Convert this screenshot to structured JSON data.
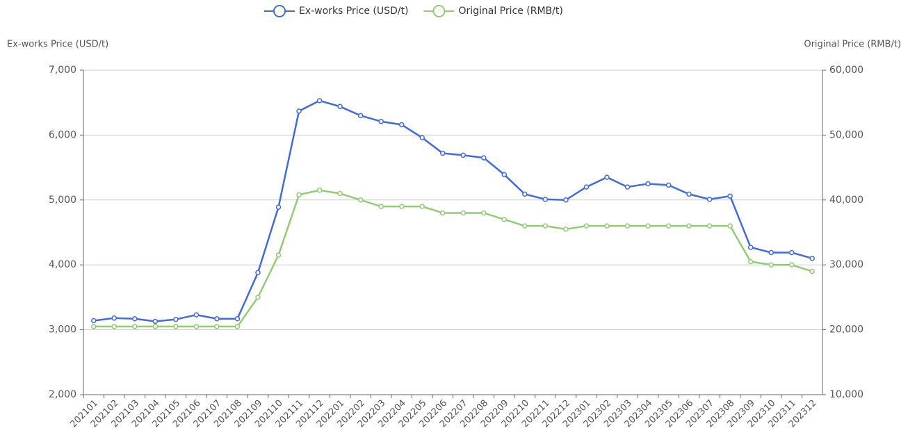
{
  "chart_data": {
    "type": "line",
    "categories": [
      "202101",
      "202102",
      "202103",
      "202104",
      "202105",
      "202106",
      "202107",
      "202108",
      "202109",
      "202110",
      "202111",
      "202112",
      "202201",
      "202202",
      "202203",
      "202204",
      "202205",
      "202206",
      "202207",
      "202208",
      "202209",
      "202210",
      "202211",
      "202212",
      "202301",
      "202302",
      "202303",
      "202304",
      "202305",
      "202306",
      "202307",
      "202308",
      "202309",
      "202310",
      "202311",
      "202312"
    ],
    "series": [
      {
        "name": "Ex-works Price (USD/t)",
        "color": "#4169e1",
        "axis": "y",
        "values": [
          3140,
          3180,
          3170,
          3130,
          3160,
          3230,
          3170,
          3170,
          3880,
          4890,
          6370,
          6530,
          6440,
          6300,
          6210,
          6160,
          5960,
          5720,
          5690,
          5650,
          5390,
          5090,
          5010,
          5000,
          5200,
          5350,
          5200,
          5250,
          5230,
          5090,
          5010,
          5060,
          4270,
          4190,
          4190,
          4100
        ]
      },
      {
        "name": "Original Price (RMB/t)",
        "color": "#91cc75",
        "axis": "y2",
        "values": [
          20500,
          20500,
          20500,
          20500,
          20500,
          20500,
          20500,
          20500,
          25000,
          31500,
          40800,
          41500,
          41000,
          40000,
          39000,
          39000,
          39000,
          38000,
          38000,
          38000,
          37000,
          36000,
          36000,
          35500,
          36000,
          36000,
          36000,
          36000,
          36000,
          36000,
          36000,
          36000,
          30500,
          30000,
          30000,
          29000
        ]
      }
    ],
    "ylabel": "Ex-works Price (USD/t)",
    "y2label": "Original Price (RMB/t)",
    "ylim": [
      2000,
      7000
    ],
    "yticks": [
      {
        "value": 2000,
        "label": "2,000"
      },
      {
        "value": 3000,
        "label": "3,000"
      },
      {
        "value": 4000,
        "label": "4,000"
      },
      {
        "value": 5000,
        "label": "5,000"
      },
      {
        "value": 6000,
        "label": "6,000"
      },
      {
        "value": 7000,
        "label": "7,000"
      }
    ],
    "y2lim": [
      10000,
      60000
    ],
    "y2ticks": [
      {
        "value": 10000,
        "label": "10,000"
      },
      {
        "value": 20000,
        "label": "20,000"
      },
      {
        "value": 30000,
        "label": "30,000"
      },
      {
        "value": 40000,
        "label": "40,000"
      },
      {
        "value": 50000,
        "label": "50,000"
      },
      {
        "value": 60000,
        "label": "60,000"
      }
    ],
    "grid": true
  }
}
